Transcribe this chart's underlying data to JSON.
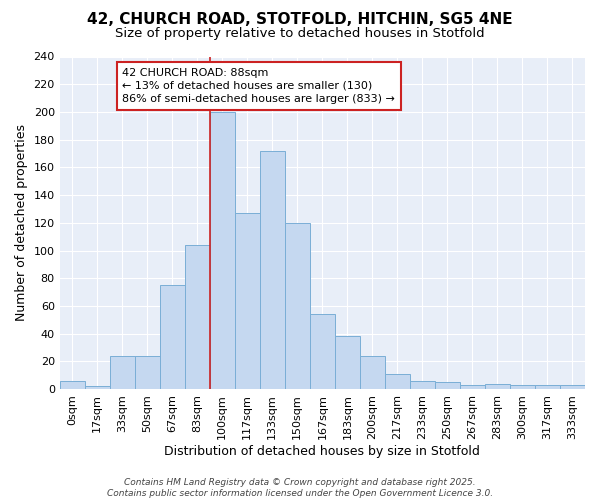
{
  "title_line1": "42, CHURCH ROAD, STOTFOLD, HITCHIN, SG5 4NE",
  "title_line2": "Size of property relative to detached houses in Stotfold",
  "xlabel": "Distribution of detached houses by size in Stotfold",
  "ylabel": "Number of detached properties",
  "categories": [
    "0sqm",
    "17sqm",
    "33sqm",
    "50sqm",
    "67sqm",
    "83sqm",
    "100sqm",
    "117sqm",
    "133sqm",
    "150sqm",
    "167sqm",
    "183sqm",
    "200sqm",
    "217sqm",
    "233sqm",
    "250sqm",
    "267sqm",
    "283sqm",
    "300sqm",
    "317sqm",
    "333sqm"
  ],
  "values": [
    6,
    2,
    24,
    24,
    75,
    104,
    200,
    127,
    172,
    120,
    54,
    38,
    24,
    11,
    6,
    5,
    3,
    4,
    3,
    3,
    3
  ],
  "bar_color": "#c5d8f0",
  "bar_edge_color": "#7aaed6",
  "background_color": "#ffffff",
  "plot_bg_color": "#e8eef8",
  "grid_color": "#ffffff",
  "vline_x": 5.5,
  "vline_color": "#cc2222",
  "annotation_text": "42 CHURCH ROAD: 88sqm\n← 13% of detached houses are smaller (130)\n86% of semi-detached houses are larger (833) →",
  "annotation_box_color": "#ffffff",
  "annotation_box_edge": "#cc2222",
  "ylim": [
    0,
    240
  ],
  "yticks": [
    0,
    20,
    40,
    60,
    80,
    100,
    120,
    140,
    160,
    180,
    200,
    220,
    240
  ],
  "footer_line1": "Contains HM Land Registry data © Crown copyright and database right 2025.",
  "footer_line2": "Contains public sector information licensed under the Open Government Licence 3.0.",
  "title_fontsize": 11,
  "subtitle_fontsize": 9.5,
  "axis_label_fontsize": 9,
  "tick_fontsize": 8,
  "annotation_fontsize": 8,
  "footer_fontsize": 6.5
}
